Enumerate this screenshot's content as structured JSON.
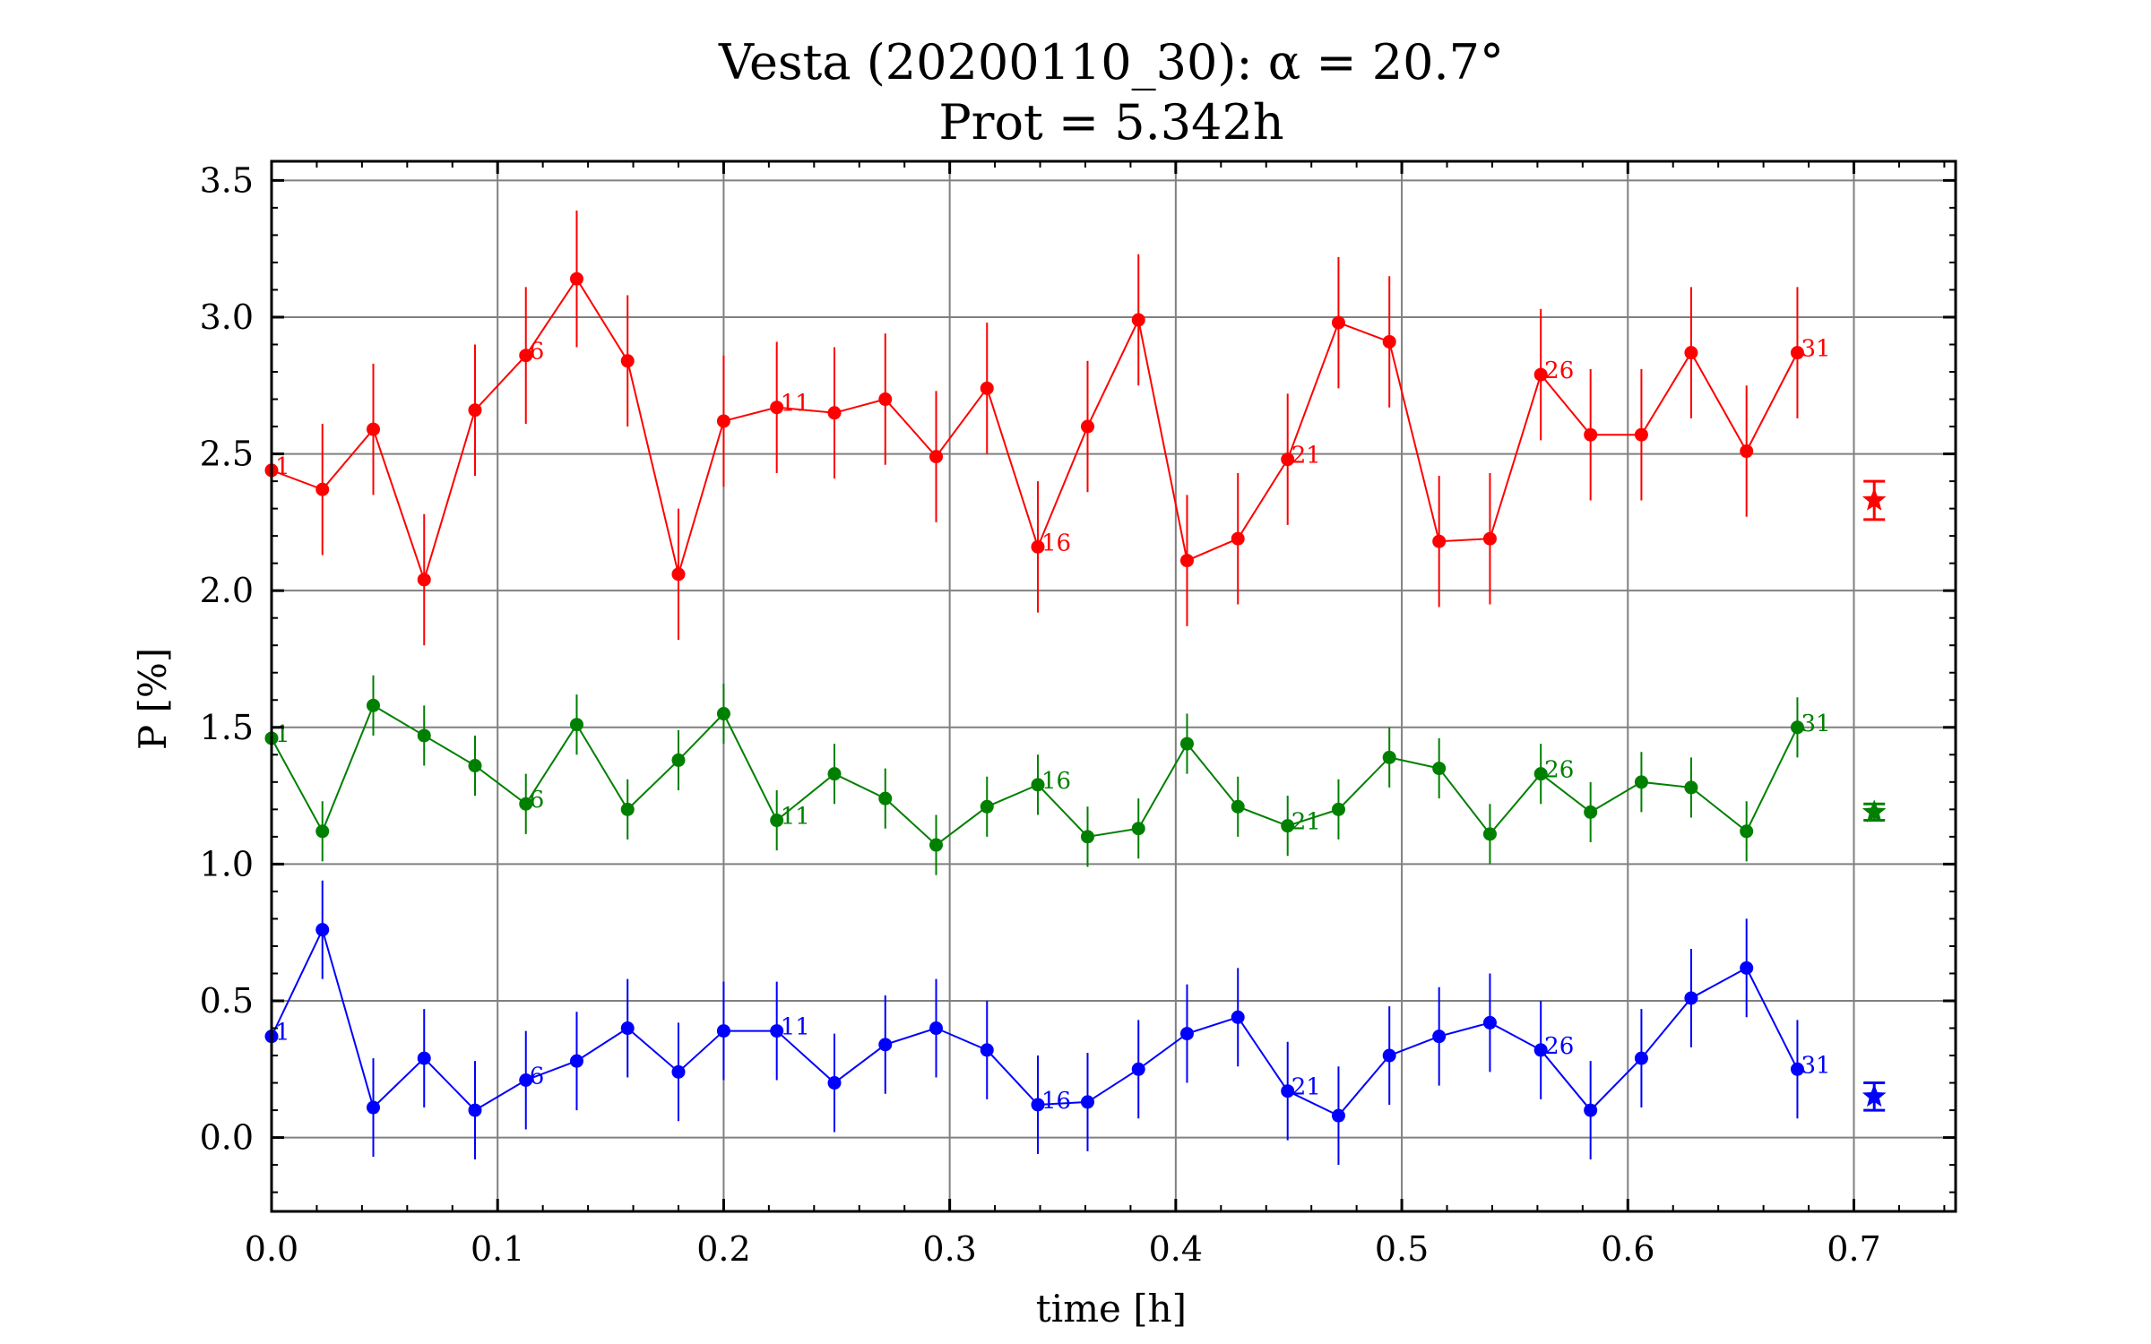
{
  "chart_data": {
    "type": "line",
    "title": "Vesta (20200110_30): α = 20.7°",
    "subtitle": "Prot = 5.342h",
    "xlabel": "time [h]",
    "ylabel": "P [%]",
    "xlim": [
      0.0,
      0.745
    ],
    "ylim": [
      -0.27,
      3.57
    ],
    "xticks": [
      "0.0",
      "0.1",
      "0.2",
      "0.3",
      "0.4",
      "0.5",
      "0.6",
      "0.7"
    ],
    "xtick_values": [
      0.0,
      0.1,
      0.2,
      0.3,
      0.4,
      0.5,
      0.6,
      0.7
    ],
    "yticks": [
      "0.0",
      "0.5",
      "1.0",
      "1.5",
      "2.0",
      "2.5",
      "3.0",
      "3.5"
    ],
    "ytick_values": [
      0.0,
      0.5,
      1.0,
      1.5,
      2.0,
      2.5,
      3.0,
      3.5
    ],
    "grid": true,
    "x": [
      0.0,
      0.0225,
      0.045,
      0.0675,
      0.09,
      0.1125,
      0.135,
      0.1575,
      0.18,
      0.2,
      0.2235,
      0.249,
      0.2715,
      0.294,
      0.3165,
      0.339,
      0.361,
      0.3835,
      0.405,
      0.4275,
      0.4495,
      0.472,
      0.4945,
      0.5165,
      0.539,
      0.5615,
      0.5835,
      0.606,
      0.628,
      0.6525,
      0.675
    ],
    "series": [
      {
        "color": "#ff0000",
        "values": [
          2.44,
          2.37,
          2.59,
          2.04,
          2.66,
          2.86,
          3.14,
          2.84,
          2.06,
          2.62,
          2.67,
          2.65,
          2.7,
          2.49,
          2.74,
          2.16,
          2.6,
          2.99,
          2.11,
          2.19,
          2.48,
          2.98,
          2.91,
          2.18,
          2.19,
          2.79,
          2.57,
          2.57,
          2.87,
          2.51,
          2.87
        ],
        "errors": [
          0.24,
          0.24,
          0.24,
          0.24,
          0.24,
          0.25,
          0.25,
          0.24,
          0.24,
          0.24,
          0.24,
          0.24,
          0.24,
          0.24,
          0.24,
          0.24,
          0.24,
          0.24,
          0.24,
          0.24,
          0.24,
          0.24,
          0.24,
          0.24,
          0.24,
          0.24,
          0.24,
          0.24,
          0.24,
          0.24,
          0.24
        ],
        "mean": 2.33,
        "mean_error": 0.07,
        "point_labels": {
          "0": "1",
          "5": "6",
          "10": "11",
          "15": "16",
          "20": "21",
          "25": "26",
          "30": "31"
        }
      },
      {
        "color": "#008000",
        "values": [
          1.46,
          1.12,
          1.58,
          1.47,
          1.36,
          1.22,
          1.51,
          1.2,
          1.38,
          1.55,
          1.16,
          1.33,
          1.24,
          1.07,
          1.21,
          1.29,
          1.1,
          1.13,
          1.44,
          1.21,
          1.14,
          1.2,
          1.39,
          1.35,
          1.11,
          1.33,
          1.19,
          1.3,
          1.28,
          1.12,
          1.5
        ],
        "errors": [
          0.11,
          0.11,
          0.11,
          0.11,
          0.11,
          0.11,
          0.11,
          0.11,
          0.11,
          0.11,
          0.11,
          0.11,
          0.11,
          0.11,
          0.11,
          0.11,
          0.11,
          0.11,
          0.11,
          0.11,
          0.11,
          0.11,
          0.11,
          0.11,
          0.11,
          0.11,
          0.11,
          0.11,
          0.11,
          0.11,
          0.11
        ],
        "mean": 1.19,
        "mean_error": 0.03,
        "point_labels": {
          "0": "1",
          "5": "6",
          "10": "11",
          "15": "16",
          "20": "21",
          "25": "26",
          "30": "31"
        }
      },
      {
        "color": "#0000ff",
        "values": [
          0.37,
          0.76,
          0.11,
          0.29,
          0.1,
          0.21,
          0.28,
          0.4,
          0.24,
          0.39,
          0.39,
          0.2,
          0.34,
          0.4,
          0.32,
          0.12,
          0.13,
          0.25,
          0.38,
          0.44,
          0.17,
          0.08,
          0.3,
          0.37,
          0.42,
          0.32,
          0.1,
          0.29,
          0.51,
          0.62,
          0.25
        ],
        "errors": [
          0.18,
          0.18,
          0.18,
          0.18,
          0.18,
          0.18,
          0.18,
          0.18,
          0.18,
          0.18,
          0.18,
          0.18,
          0.18,
          0.18,
          0.18,
          0.18,
          0.18,
          0.18,
          0.18,
          0.18,
          0.18,
          0.18,
          0.18,
          0.18,
          0.18,
          0.18,
          0.18,
          0.18,
          0.18,
          0.18,
          0.18
        ],
        "mean": 0.15,
        "mean_error": 0.05,
        "point_labels": {
          "0": "1",
          "5": "6",
          "10": "11",
          "15": "16",
          "20": "21",
          "25": "26",
          "30": "31"
        }
      }
    ],
    "mean_marker_x": 0.709
  }
}
